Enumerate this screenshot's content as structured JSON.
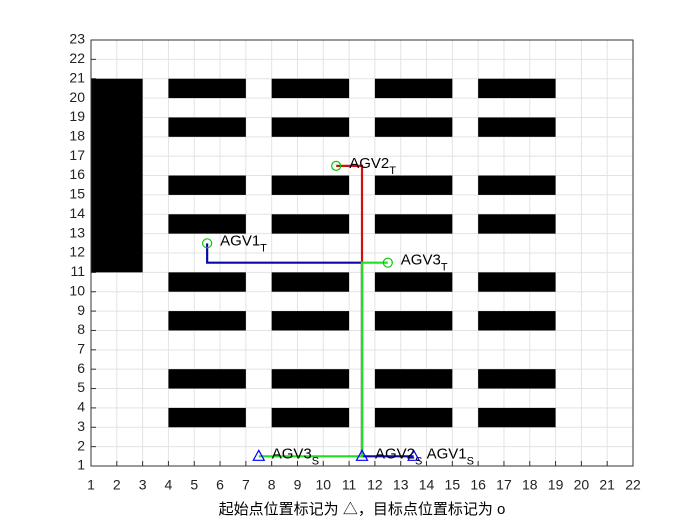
{
  "chart_data": {
    "type": "path-map",
    "xlabel": "起始点位置标记为 △，目标点位置标记为 o",
    "xlim": [
      1,
      22
    ],
    "ylim": [
      1,
      23
    ],
    "xticks": [
      1,
      2,
      3,
      4,
      5,
      6,
      7,
      8,
      9,
      10,
      11,
      12,
      13,
      14,
      15,
      16,
      17,
      18,
      19,
      20,
      21,
      22
    ],
    "yticks": [
      1,
      2,
      3,
      4,
      5,
      6,
      7,
      8,
      9,
      10,
      11,
      12,
      13,
      14,
      15,
      16,
      17,
      18,
      19,
      20,
      21,
      22,
      23
    ],
    "grid": true,
    "obstacle_color": "#000000",
    "obstacles": [
      [
        1,
        11,
        3,
        21
      ],
      [
        4,
        20,
        7,
        21
      ],
      [
        8,
        20,
        11,
        21
      ],
      [
        12,
        20,
        15,
        21
      ],
      [
        16,
        20,
        19,
        21
      ],
      [
        4,
        18,
        7,
        19
      ],
      [
        8,
        18,
        11,
        19
      ],
      [
        12,
        18,
        15,
        19
      ],
      [
        16,
        18,
        19,
        19
      ],
      [
        4,
        15,
        7,
        16
      ],
      [
        8,
        15,
        11,
        16
      ],
      [
        12,
        15,
        15,
        16
      ],
      [
        16,
        15,
        19,
        16
      ],
      [
        4,
        13,
        7,
        14
      ],
      [
        8,
        13,
        11,
        14
      ],
      [
        12,
        13,
        15,
        14
      ],
      [
        16,
        13,
        19,
        14
      ],
      [
        4,
        10,
        7,
        11
      ],
      [
        8,
        10,
        11,
        11
      ],
      [
        12,
        10,
        15,
        11
      ],
      [
        16,
        10,
        19,
        11
      ],
      [
        4,
        8,
        7,
        9
      ],
      [
        8,
        8,
        11,
        9
      ],
      [
        12,
        8,
        15,
        9
      ],
      [
        16,
        8,
        19,
        9
      ],
      [
        4,
        5,
        7,
        6
      ],
      [
        8,
        5,
        11,
        6
      ],
      [
        12,
        5,
        15,
        6
      ],
      [
        16,
        5,
        19,
        6
      ],
      [
        4,
        3,
        7,
        4
      ],
      [
        8,
        3,
        11,
        4
      ],
      [
        12,
        3,
        15,
        4
      ],
      [
        16,
        3,
        19,
        4
      ]
    ],
    "start_marker_color": "#0000ff",
    "goal_marker_color": "#00cc00",
    "start_sub": "S",
    "goal_sub": "T",
    "series": [
      {
        "name": "AGV1",
        "color": "#0a0aa8",
        "x": [
          13.5,
          11.5,
          11.5,
          5.5,
          5.5
        ],
        "y": [
          1.5,
          1.5,
          11.5,
          11.5,
          12.5
        ]
      },
      {
        "name": "AGV2",
        "color": "#d01010",
        "x": [
          11.5,
          11.5,
          10.5
        ],
        "y": [
          1.5,
          16.5,
          16.5
        ]
      },
      {
        "name": "AGV3",
        "color": "#22dd22",
        "x": [
          7.5,
          11.5,
          11.5,
          12.5
        ],
        "y": [
          1.5,
          1.5,
          11.5,
          11.5
        ]
      }
    ]
  }
}
